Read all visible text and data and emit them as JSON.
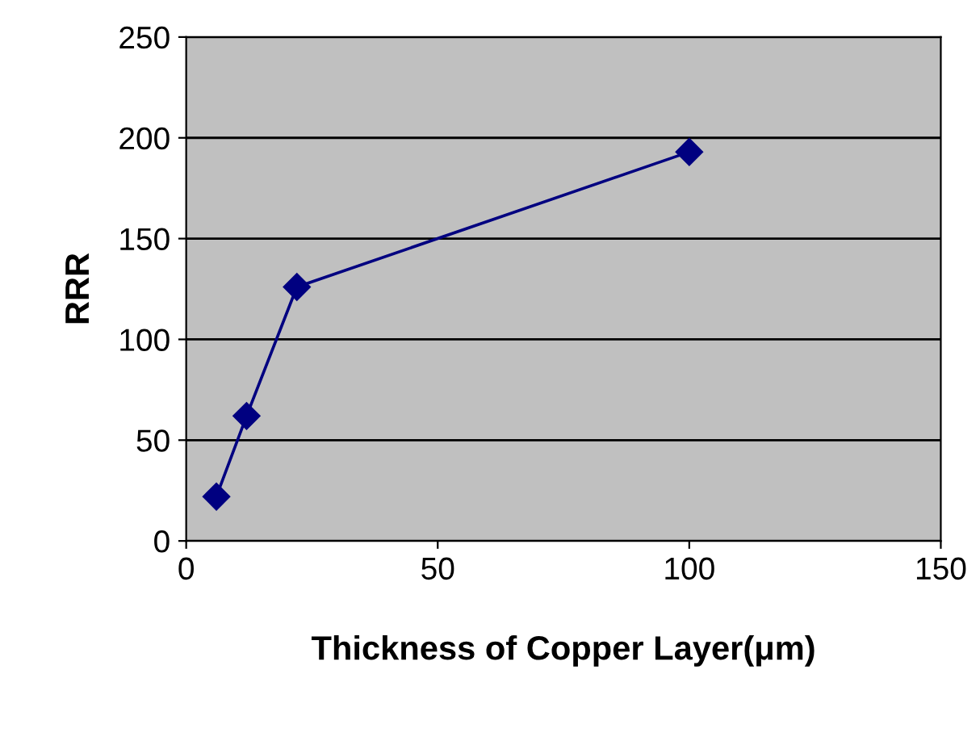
{
  "chart_data": {
    "type": "line",
    "xlabel": "Thickness of Copper Layer(μm)",
    "ylabel": "RRR",
    "x": [
      6,
      12,
      22,
      100
    ],
    "series": [
      {
        "color": "#000080",
        "values": [
          22,
          62,
          126,
          193
        ]
      }
    ],
    "xlim": [
      0,
      150
    ],
    "xticks": [
      0,
      50,
      100,
      150
    ],
    "ylim": [
      0,
      250
    ],
    "yticks": [
      0,
      50,
      100,
      150,
      200,
      250
    ],
    "grid": "y",
    "marker": "diamond",
    "line_style": "solid"
  }
}
